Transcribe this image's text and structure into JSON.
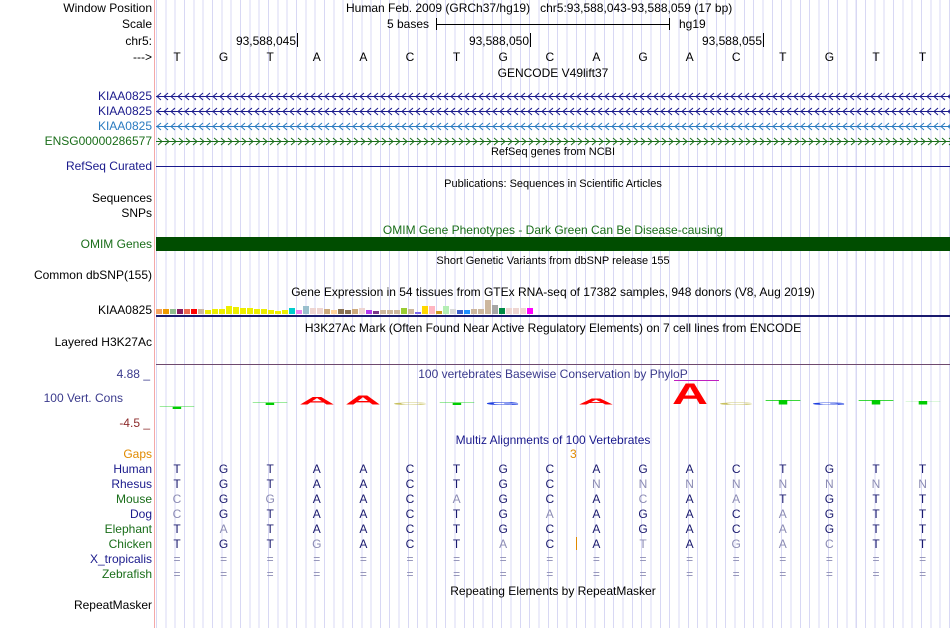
{
  "header": {
    "window_position_label": "Window Position",
    "window_position": "Human Feb. 2009 (GRCh37/hg19)   chr5:93,588,043-93,588,059 (17 bp)",
    "scale_label": "Scale",
    "scale_text": "5 bases",
    "assembly": "hg19",
    "chrom_label": "chr5:",
    "ticks": [
      "93,588,045",
      "93,588,050",
      "93,588,055"
    ],
    "strand_label": "--->",
    "sequence": [
      "T",
      "G",
      "T",
      "A",
      "A",
      "C",
      "T",
      "G",
      "C",
      "A",
      "G",
      "A",
      "C",
      "T",
      "G",
      "T",
      "T"
    ]
  },
  "gencode": {
    "title": "GENCODE V49lift37",
    "genes": [
      {
        "name": "KIAA0825",
        "color": "#1a1a8c",
        "strand": "-"
      },
      {
        "name": "KIAA0825",
        "color": "#1a1a8c",
        "strand": "-"
      },
      {
        "name": "KIAA0825",
        "color": "#2a7ac0",
        "strand": "-"
      },
      {
        "name": "ENSG00000286577",
        "color": "#1a6e1a",
        "strand": "+"
      }
    ]
  },
  "refseq": {
    "title": "RefSeq genes from NCBI",
    "label": "RefSeq Curated"
  },
  "publications": {
    "title": "Publications: Sequences in Scientific Articles",
    "labels": [
      "Sequences",
      "SNPs"
    ]
  },
  "omim": {
    "title": "OMIM Gene Phenotypes - Dark Green Can Be Disease-causing",
    "label": "OMIM Genes",
    "color": "#004d00"
  },
  "dbsnp": {
    "title": "Short Genetic Variants from dbSNP release 155",
    "label": "Common dbSNP(155)"
  },
  "gtex": {
    "title": "Gene Expression in 54 tissues from GTEx RNA-seq of 17382 samples, 948 donors (V8, Aug 2019)",
    "label": "KIAA0825",
    "values": [
      5,
      5,
      5,
      5,
      5,
      5,
      5,
      4,
      5,
      5,
      7,
      6.5,
      5.5,
      5.5,
      4.5,
      5,
      3.5,
      3,
      3.5,
      5.5,
      3.5,
      7,
      6,
      6,
      4.5,
      3.5,
      4.5,
      4,
      4.5,
      6,
      3.5,
      2.5,
      3.5,
      4,
      3.5,
      6,
      5,
      2,
      7,
      7,
      3,
      7,
      5,
      4,
      4,
      4.5,
      4.5,
      13,
      8,
      6,
      6,
      6,
      6,
      6
    ],
    "colors": [
      "#f4a460",
      "#ee9a00",
      "#8fbc8f",
      "#8b1c62",
      "#ee6a50",
      "#ff0000",
      "#cdb79e",
      "#eeee00",
      "#eeee00",
      "#eeee00",
      "#eeee00",
      "#eeee00",
      "#eeee00",
      "#eeee00",
      "#eeee00",
      "#eeee00",
      "#eeee00",
      "#eeee00",
      "#eeee00",
      "#00cdcd",
      "#ee82ee",
      "#9ac0cd",
      "#eed5d2",
      "#eed5d2",
      "#cdaa7d",
      "#ffd39b",
      "#8b7355",
      "#8b7355",
      "#cdaa7d",
      "#eed5d2",
      "#b23aee",
      "#7a378b",
      "#cdb79e",
      "#cdb79e",
      "#cdb79e",
      "#9acd32",
      "#cdb79e",
      "#7b68ee",
      "#ffd700",
      "#ffb6c1",
      "#cd9b1d",
      "#b4eeb4",
      "#d9d9d9",
      "#3a5fcd",
      "#1e90ff",
      "#cdb79e",
      "#cdb79e",
      "#cdb79e",
      "#a6a6a6",
      "#008b45",
      "#eed5d2",
      "#eed5d2",
      "#eed5d2",
      "#ff00ff"
    ]
  },
  "h3k27ac": {
    "title": "H3K27Ac Mark (Often Found Near Active Regulatory Elements) on 7 cell lines from ENCODE",
    "label": "Layered H3K27Ac"
  },
  "phylop": {
    "title": "100 vertebrates Basewise Conservation by PhyloP",
    "label": "100 Vert. Cons",
    "max_label": "4.88 _",
    "min_label": "-4.5 _",
    "scores": [
      -0.3,
      0,
      0.4,
      1.6,
      1.8,
      0.3,
      0.4,
      0.6,
      0,
      1.2,
      0,
      4.2,
      0.5,
      0.9,
      0.5,
      0.9,
      0.7
    ],
    "colors": {
      "A": "#ff0000",
      "C": "#c8c060",
      "G": "#2040e0",
      "T": "#00cc00"
    }
  },
  "multiz": {
    "title": "Multiz Alignments of 100 Vertebrates",
    "gaps_label": "Gaps",
    "gap_count": "3",
    "species": [
      {
        "name": "Human",
        "color": "#1a1a8c",
        "seq": "TGTAACTGCAGACTGTT"
      },
      {
        "name": "Rhesus",
        "color": "#1a1a8c",
        "seq": "TGTAACTGCNNNNNNNN"
      },
      {
        "name": "Mouse",
        "color": "#1a6e1a",
        "seq": "CGGAACAGCACAATGTT"
      },
      {
        "name": "Dog",
        "color": "#1a1a8c",
        "seq": "CGTAACTGAAGACAGTT"
      },
      {
        "name": "Elephant",
        "color": "#1a6e1a",
        "seq": "TATAACTGCAGACAGTT"
      },
      {
        "name": "Chicken",
        "color": "#1a6e1a",
        "seq": "TGTGACTACATAGACTT"
      },
      {
        "name": "X_tropicalis",
        "color": "#1a1a8c",
        "seq": "================="
      },
      {
        "name": "Zebrafish",
        "color": "#1a6e1a",
        "seq": "================="
      }
    ]
  },
  "repeatmasker": {
    "title": "Repeating Elements by RepeatMasker",
    "label": "RepeatMasker"
  }
}
